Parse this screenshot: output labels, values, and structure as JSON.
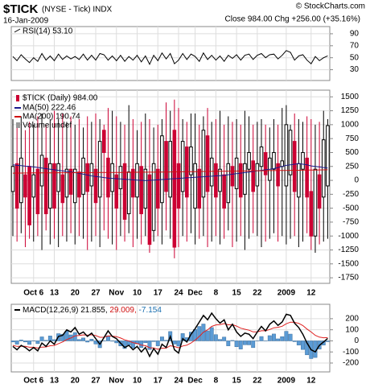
{
  "chart_data": {
    "type": "candlestick",
    "symbol": "$TICK",
    "description": "(NYSE - Tick) INDX",
    "date": "16-Jan-2009",
    "quote": "Close 984.00  Chg +256.00 (+35.16%)",
    "credit": "© StockCharts.com",
    "legend": "$TICK (Daily) 984.00",
    "volume_label": "Volume undef",
    "up_color": "#000000",
    "down_color": "#cc0033",
    "categories": [
      null,
      null,
      null,
      null,
      null,
      "Oct 6",
      null,
      null,
      null,
      null,
      "13",
      null,
      null,
      null,
      null,
      "20",
      null,
      null,
      null,
      null,
      "27",
      null,
      null,
      null,
      null,
      "Nov",
      null,
      null,
      null,
      null,
      "10",
      null,
      null,
      null,
      null,
      "17",
      null,
      null,
      null,
      null,
      "24",
      null,
      null,
      null,
      "Dec",
      null,
      null,
      null,
      null,
      "8",
      null,
      null,
      null,
      null,
      "15",
      null,
      null,
      null,
      null,
      "22",
      null,
      null,
      null,
      null,
      null,
      null,
      "2009",
      null,
      null,
      null,
      null,
      null,
      "12",
      null,
      null,
      null,
      null
    ],
    "open": [
      -200,
      300,
      -400,
      100,
      250,
      -300,
      200,
      -100,
      400,
      -500,
      300,
      -200,
      100,
      -300,
      200,
      -400,
      150,
      -250,
      300,
      -100,
      200,
      -300,
      900,
      400,
      -200,
      100,
      -150,
      300,
      -600,
      200,
      -300,
      250,
      -500,
      100,
      -900,
      200,
      -400,
      700,
      -300,
      900,
      300,
      -200,
      600,
      100,
      -500,
      200,
      -300,
      800,
      -100,
      300,
      -200,
      100,
      -400,
      250,
      -150,
      300,
      -250,
      200,
      350,
      -100,
      250,
      500,
      0,
      200,
      300,
      250,
      -100,
      100,
      700,
      -300,
      200,
      400,
      -200,
      -1000,
      100,
      -300,
      -100
    ],
    "high": [
      1100,
      1000,
      1150,
      900,
      1050,
      1000,
      1150,
      1200,
      1000,
      1100,
      1250,
      1100,
      1200,
      1050,
      1150,
      1000,
      1100,
      950,
      1150,
      1050,
      1200,
      1100,
      1000,
      1300,
      1250,
      1150,
      1050,
      1000,
      1350,
      1100,
      900,
      1050,
      1200,
      1100,
      950,
      1000,
      1100,
      1400,
      1250,
      1450,
      1300,
      1100,
      1050,
      1200,
      1200,
      1000,
      1150,
      1300,
      1050,
      1100,
      1250,
      1000,
      1150,
      1050,
      1100,
      1000,
      1250,
      1150,
      1000,
      1050,
      1100,
      1000,
      950,
      1100,
      1000,
      1300,
      1350,
      1000,
      1200,
      1100,
      1050,
      1150,
      1100,
      1000,
      1050,
      1250,
      1100
    ],
    "low": [
      -1000,
      -1100,
      -950,
      -1200,
      -1050,
      -1100,
      -1000,
      -1250,
      -900,
      -1150,
      -1050,
      -1200,
      -1000,
      -1100,
      -950,
      -1150,
      -1000,
      -1050,
      -1250,
      -1100,
      -1000,
      -1200,
      -900,
      -1050,
      -1150,
      -1250,
      -1000,
      -1100,
      -950,
      -1200,
      -1050,
      -1150,
      -1000,
      -1300,
      -1100,
      -1000,
      -1150,
      -900,
      -1050,
      -1400,
      -1200,
      -1000,
      -1100,
      -950,
      -1150,
      -1050,
      -1000,
      -1200,
      -1100,
      -1000,
      -1150,
      -1050,
      -900,
      -1200,
      -1100,
      -1000,
      -1250,
      -1050,
      -950,
      -1000,
      -1200,
      -1100,
      -1050,
      -950,
      -1100,
      -1000,
      -1150,
      -1050,
      -1000,
      -1200,
      -1100,
      -950,
      -1250,
      -1300,
      -1150,
      -1100,
      -1050
    ],
    "close": [
      250,
      -500,
      400,
      -300,
      -800,
      100,
      -600,
      450,
      -600,
      300,
      -500,
      300,
      -400,
      200,
      -250,
      200,
      -300,
      400,
      -200,
      300,
      -400,
      700,
      500,
      -300,
      300,
      -500,
      250,
      -700,
      150,
      -300,
      300,
      -600,
      200,
      -1150,
      300,
      -500,
      800,
      -200,
      700,
      -1200,
      -500,
      700,
      -300,
      600,
      300,
      -500,
      900,
      -200,
      400,
      -300,
      200,
      -500,
      300,
      -100,
      400,
      -300,
      300,
      500,
      -200,
      300,
      600,
      100,
      400,
      500,
      -100,
      350,
      1000,
      900,
      -200,
      300,
      500,
      -300,
      -1000,
      200,
      -500,
      728,
      984
    ],
    "series": [
      {
        "name": "MA(50) 222.46",
        "color": "#1a1a8c",
        "values": [
          280,
          270,
          265,
          255,
          250,
          240,
          230,
          220,
          210,
          200,
          190,
          180,
          170,
          160,
          150,
          140,
          125,
          110,
          95,
          80,
          70,
          60,
          50,
          40,
          35,
          30,
          25,
          20,
          15,
          10,
          5,
          0,
          -5,
          0,
          5,
          10,
          15,
          20,
          25,
          30,
          35,
          40,
          45,
          50,
          55,
          60,
          65,
          70,
          75,
          80,
          85,
          90,
          100,
          110,
          120,
          130,
          140,
          150,
          160,
          170,
          180,
          190,
          200,
          210,
          230,
          250,
          270,
          280,
          290,
          300,
          290,
          280,
          260,
          250,
          240,
          230,
          222.46
        ]
      },
      {
        "name": "MA(200) 190.74",
        "color": "#d01010",
        "values": [
          130,
          131,
          131,
          132,
          132,
          133,
          133,
          134,
          134,
          135,
          135,
          136,
          136,
          137,
          137,
          138,
          138,
          139,
          139,
          140,
          140,
          141,
          141,
          142,
          142,
          143,
          143,
          144,
          144,
          145,
          145,
          146,
          146,
          147,
          147,
          148,
          149,
          150,
          151,
          152,
          153,
          154,
          155,
          156,
          157,
          158,
          159,
          160,
          161,
          162,
          163,
          164,
          165,
          166,
          167,
          168,
          169,
          170,
          171,
          172,
          173,
          174,
          175,
          176,
          177,
          178,
          179,
          180,
          181,
          182,
          183,
          184,
          185,
          186,
          187,
          189,
          190.74
        ]
      }
    ],
    "ylim": [
      -1850,
      1620
    ],
    "yticks": [
      1500,
      1250,
      1000,
      750,
      500,
      250,
      0,
      -250,
      -500,
      -750,
      -1000,
      -1250,
      -1500,
      -1750
    ],
    "grid": true,
    "rsi": {
      "label": "RSI(14) 53.10",
      "color": "#000000",
      "values": [
        52,
        45,
        55,
        48,
        42,
        50,
        44,
        57,
        46,
        53,
        45,
        56,
        47,
        53,
        48,
        52,
        47,
        56,
        46,
        54,
        46,
        57,
        55,
        46,
        53,
        45,
        54,
        44,
        52,
        46,
        54,
        43,
        53,
        39,
        54,
        45,
        58,
        48,
        57,
        40,
        46,
        57,
        47,
        56,
        52,
        44,
        58,
        47,
        54,
        46,
        53,
        44,
        54,
        49,
        55,
        46,
        54,
        56,
        47,
        54,
        57,
        50,
        55,
        56,
        48,
        54,
        62,
        59,
        46,
        53,
        55,
        46,
        40,
        52,
        45,
        50,
        53.1
      ],
      "ylim": [
        12,
        102
      ],
      "yticks": [
        90,
        70,
        50,
        30
      ]
    },
    "macd": {
      "legend": [
        "MACD(12,26,9) 21.855,",
        " 29.009,",
        " -7.154"
      ],
      "legend_colors": [
        "#000000",
        "#d01010",
        "#1a6fb0"
      ],
      "macd": {
        "color": "#000000",
        "values": [
          -50,
          -80,
          -40,
          -60,
          -90,
          -60,
          -90,
          -20,
          -50,
          0,
          -30,
          40,
          50,
          100,
          80,
          120,
          60,
          80,
          40,
          70,
          20,
          -30,
          30,
          90,
          40,
          20,
          -20,
          -60,
          -40,
          -80,
          -50,
          -100,
          -60,
          -140,
          -70,
          -120,
          -30,
          -60,
          40,
          -80,
          -110,
          20,
          -10,
          60,
          110,
          170,
          230,
          190,
          250,
          200,
          160,
          190,
          100,
          150,
          80,
          40,
          70,
          60,
          20,
          80,
          130,
          90,
          150,
          180,
          140,
          170,
          240,
          230,
          160,
          120,
          60,
          -20,
          -80,
          -100,
          -40,
          -10,
          21.855
        ]
      },
      "signal": {
        "color": "#e02020",
        "values": [
          -40,
          -50,
          -48,
          -50,
          -58,
          -58,
          -65,
          -56,
          -55,
          -44,
          -41,
          -25,
          -10,
          12,
          26,
          45,
          48,
          54,
          51,
          55,
          48,
          32,
          32,
          44,
          43,
          38,
          26,
          9,
          -1,
          -17,
          -24,
          -39,
          -43,
          -62,
          -64,
          -75,
          -66,
          -65,
          -44,
          -51,
          -63,
          -46,
          -39,
          -19,
          7,
          40,
          78,
          100,
          130,
          144,
          147,
          156,
          145,
          146,
          133,
          114,
          105,
          96,
          81,
          81,
          91,
          91,
          103,
          118,
          122,
          132,
          154,
          169,
          167,
          158,
          138,
          106,
          80,
          50,
          34,
          28,
          29.009
        ]
      },
      "histogram": {
        "color": "#5b9bd5",
        "values": [
          -10,
          -30,
          8,
          -10,
          -32,
          -2,
          -25,
          36,
          5,
          44,
          11,
          65,
          60,
          88,
          54,
          75,
          12,
          26,
          -11,
          15,
          -28,
          -62,
          -2,
          46,
          -3,
          -18,
          -46,
          -69,
          -39,
          -63,
          -26,
          -61,
          -17,
          -78,
          -6,
          -45,
          36,
          5,
          84,
          -29,
          -47,
          66,
          29,
          79,
          103,
          130,
          152,
          90,
          120,
          56,
          13,
          34,
          -45,
          4,
          -53,
          -74,
          -35,
          -36,
          -61,
          -1,
          39,
          -1,
          47,
          62,
          18,
          38,
          86,
          61,
          -7,
          -38,
          -78,
          -126,
          -160,
          -150,
          -74,
          -38,
          -7.154
        ]
      },
      "ylim": [
        -280,
        330
      ],
      "yticks": [
        200,
        100,
        0,
        -100,
        -200
      ]
    }
  }
}
